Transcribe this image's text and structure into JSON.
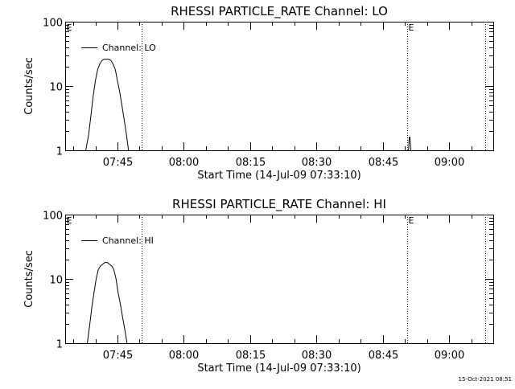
{
  "stamp": "15-Oct-2021 08:51",
  "chart_data": [
    {
      "type": "line",
      "title": "RHESSI PARTICLE_RATE Channel: LO",
      "xlabel": "Start Time (14-Jul-09 07:33:10)",
      "ylabel": "Counts/sec",
      "xlim": [
        "07:33:10",
        "09:10:00"
      ],
      "ylim": [
        1,
        100
      ],
      "yscale": "log",
      "yticks": [
        {
          "value": 1,
          "label": "1"
        },
        {
          "value": 10,
          "label": "10"
        },
        {
          "value": 100,
          "label": "100"
        }
      ],
      "xticks": [
        {
          "time": "07:45:00",
          "label": "07:45"
        },
        {
          "time": "08:00:00",
          "label": "08:00"
        },
        {
          "time": "08:15:00",
          "label": "08:15"
        },
        {
          "time": "08:30:00",
          "label": "08:30"
        },
        {
          "time": "08:45:00",
          "label": "08:45"
        },
        {
          "time": "09:00:00",
          "label": "09:00"
        }
      ],
      "legend": {
        "position": "top-left",
        "label": "Channel: LO"
      },
      "vlines": [
        {
          "time": "07:33:10",
          "label": "E"
        },
        {
          "time": "07:50:30",
          "label": ""
        },
        {
          "time": "08:50:30",
          "label": "E"
        },
        {
          "time": "09:08:10",
          "label": ""
        }
      ],
      "series": [
        {
          "name": "Channel: LO",
          "x": [
            "07:37:50",
            "07:38:30",
            "07:39:00",
            "07:39:30",
            "07:40:00",
            "07:40:30",
            "07:41:00",
            "07:41:30",
            "07:42:00",
            "07:42:30",
            "07:43:00",
            "07:43:30",
            "07:44:00",
            "07:44:30",
            "07:45:00",
            "07:45:30",
            "07:46:00",
            "07:46:30",
            "07:47:00",
            "07:47:30"
          ],
          "y": [
            1.0,
            1.8,
            3.5,
            7,
            12,
            18,
            22,
            25,
            26,
            26,
            26,
            25,
            22,
            18,
            12,
            8,
            5,
            3,
            1.8,
            1.0
          ]
        },
        {
          "name": "",
          "x": [
            "08:50:50",
            "08:51:00",
            "08:51:10",
            "08:51:20"
          ],
          "y": [
            1.0,
            1.6,
            1.6,
            1.0
          ]
        }
      ]
    },
    {
      "type": "line",
      "title": "RHESSI PARTICLE_RATE Channel: HI",
      "xlabel": "Start Time (14-Jul-09 07:33:10)",
      "ylabel": "Counts/sec",
      "xlim": [
        "07:33:10",
        "09:10:00"
      ],
      "ylim": [
        1,
        100
      ],
      "yscale": "log",
      "yticks": [
        {
          "value": 1,
          "label": "1"
        },
        {
          "value": 10,
          "label": "10"
        },
        {
          "value": 100,
          "label": "100"
        }
      ],
      "xticks": [
        {
          "time": "07:45:00",
          "label": "07:45"
        },
        {
          "time": "08:00:00",
          "label": "08:00"
        },
        {
          "time": "08:15:00",
          "label": "08:15"
        },
        {
          "time": "08:30:00",
          "label": "08:30"
        },
        {
          "time": "08:45:00",
          "label": "08:45"
        },
        {
          "time": "09:00:00",
          "label": "09:00"
        }
      ],
      "legend": {
        "position": "top-left",
        "label": "Channel: HI"
      },
      "vlines": [
        {
          "time": "07:33:10",
          "label": "E"
        },
        {
          "time": "07:50:30",
          "label": ""
        },
        {
          "time": "08:50:30",
          "label": "E"
        },
        {
          "time": "09:08:10",
          "label": ""
        }
      ],
      "series": [
        {
          "name": "Channel: HI",
          "x": [
            "07:38:10",
            "07:38:40",
            "07:39:10",
            "07:39:40",
            "07:40:10",
            "07:40:40",
            "07:41:10",
            "07:41:40",
            "07:42:10",
            "07:42:40",
            "07:43:10",
            "07:43:40",
            "07:44:10",
            "07:44:40",
            "07:45:10",
            "07:45:40",
            "07:46:10",
            "07:46:40",
            "07:47:10"
          ],
          "y": [
            1.0,
            1.8,
            3.5,
            6,
            10,
            14,
            16,
            17,
            18,
            18,
            17,
            16,
            14,
            10,
            6,
            4,
            2.5,
            1.6,
            1.0
          ]
        }
      ]
    }
  ]
}
